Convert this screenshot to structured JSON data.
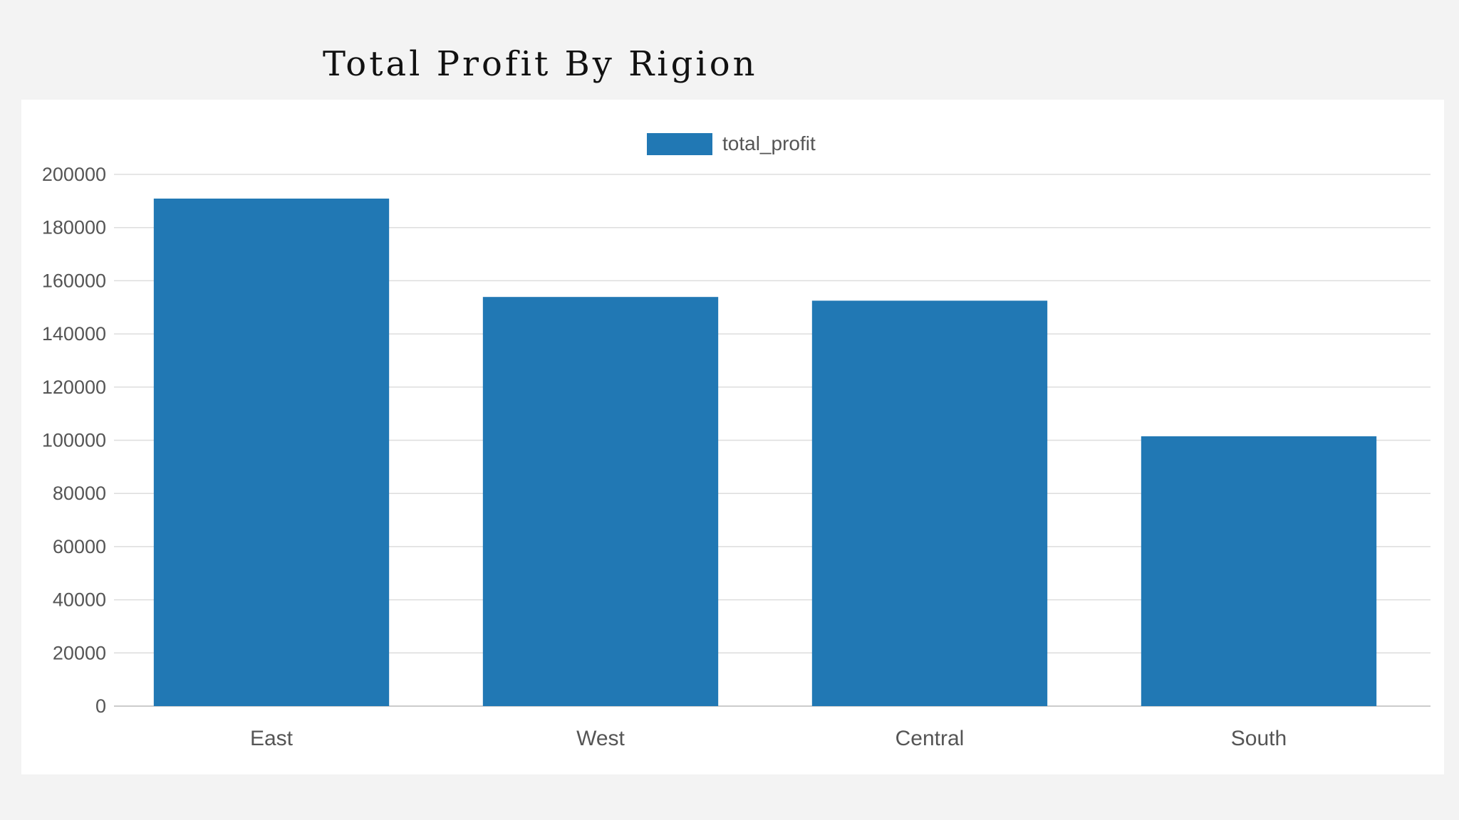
{
  "page": {
    "title": "Total Profit By Rigion"
  },
  "chart_data": {
    "type": "bar",
    "title": "Total Profit By Rigion",
    "xlabel": "",
    "ylabel": "",
    "categories": [
      "East",
      "West",
      "Central",
      "South"
    ],
    "series": [
      {
        "name": "total_profit",
        "values": [
          190900,
          153900,
          152500,
          101500
        ]
      }
    ],
    "ylim": [
      0,
      200000
    ],
    "y_ticks": [
      0,
      20000,
      40000,
      60000,
      80000,
      100000,
      120000,
      140000,
      160000,
      180000,
      200000
    ],
    "grid": true,
    "legend_position": "top-center",
    "colors": {
      "bar": "#2178b4",
      "grid": "#dddddd",
      "tick_text": "#555555",
      "axis": "#cccccc"
    }
  }
}
